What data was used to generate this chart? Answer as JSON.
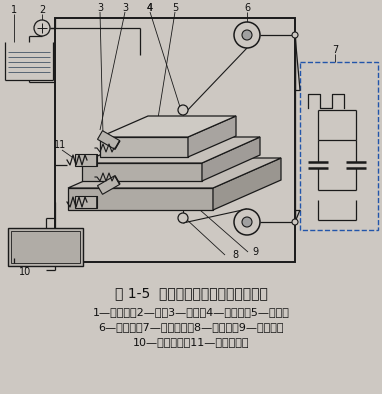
{
  "title": "图 1-5  中走丝电火花线切割加工原理",
  "caption_line1": "1—工作液；2—泵；3—喷嘴；4—导向器；5—工件；",
  "caption_line2": "6—运丝筒；7—脉冲电源；8—电极丝；9—工作台；",
  "caption_line3": "10—数控装置；11—步进电动机",
  "bg_color": "#cdc8c2",
  "line_color": "#1a1a1a",
  "dashed_box_color": "#2255aa"
}
